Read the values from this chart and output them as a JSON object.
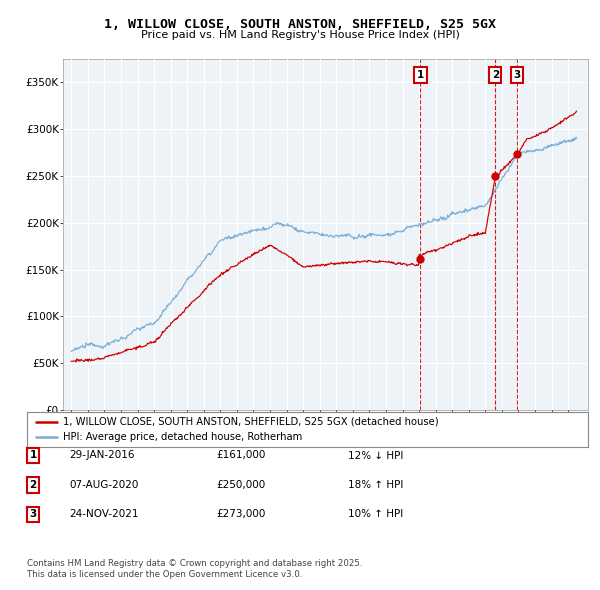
{
  "title_line1": "1, WILLOW CLOSE, SOUTH ANSTON, SHEFFIELD, S25 5GX",
  "title_line2": "Price paid vs. HM Land Registry's House Price Index (HPI)",
  "legend_line1": "1, WILLOW CLOSE, SOUTH ANSTON, SHEFFIELD, S25 5GX (detached house)",
  "legend_line2": "HPI: Average price, detached house, Rotherham",
  "transactions": [
    {
      "num": 1,
      "date": "29-JAN-2016",
      "price": 161000,
      "change": "12% ↓ HPI"
    },
    {
      "num": 2,
      "date": "07-AUG-2020",
      "price": 250000,
      "change": "18% ↑ HPI"
    },
    {
      "num": 3,
      "date": "24-NOV-2021",
      "price": 273000,
      "change": "10% ↑ HPI"
    }
  ],
  "transaction_dates_decimal": [
    2016.08,
    2020.6,
    2021.9
  ],
  "transaction_prices": [
    161000,
    250000,
    273000
  ],
  "footnote": "Contains HM Land Registry data © Crown copyright and database right 2025.\nThis data is licensed under the Open Government Licence v3.0.",
  "line_color_price": "#cc0000",
  "line_color_hpi": "#7aadd4",
  "grid_color": "#ccccdd",
  "background_color": "#ffffff",
  "chart_bg": "#eef2f8",
  "ylim": [
    0,
    375000
  ],
  "xlim_start": 1994.5,
  "xlim_end": 2026.2
}
